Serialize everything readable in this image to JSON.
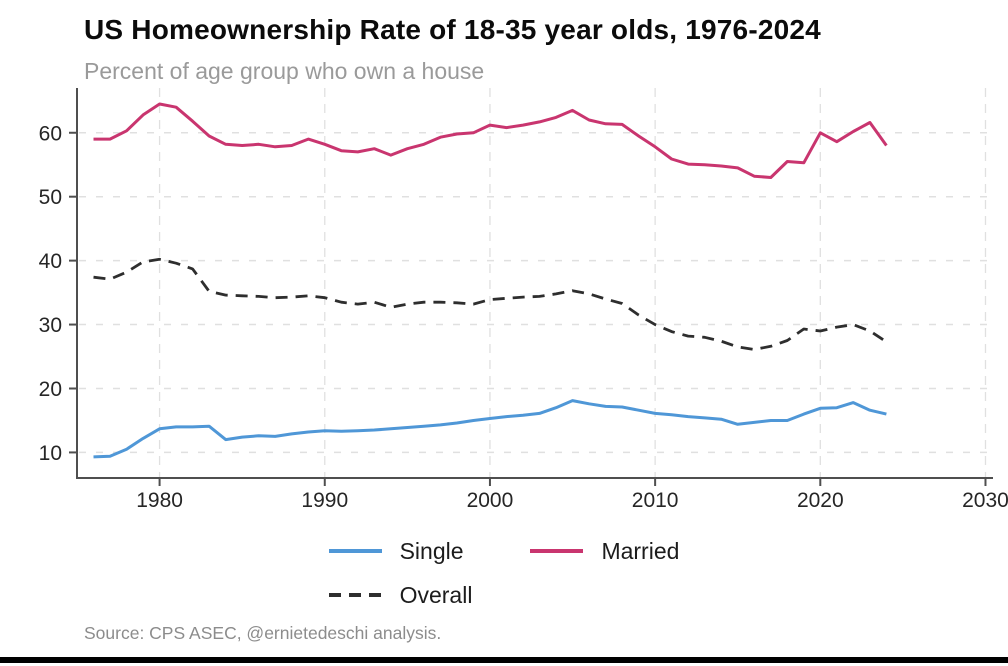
{
  "title": "US Homeownership Rate of 18-35 year olds, 1976-2024",
  "subtitle": "Percent of age group who own a house",
  "source": "Source: CPS ASEC, @ernietedeschi analysis.",
  "colors": {
    "single": "#4f97d7",
    "married": "#c9356f",
    "overall": "#2e2e2e",
    "grid": "#e0e0e0",
    "axis": "#4f4f4f",
    "tick_label": "#262626"
  },
  "legend": {
    "single": "Single",
    "married": "Married",
    "overall": "Overall"
  },
  "chart_data": {
    "type": "line",
    "title": "US Homeownership Rate of 18-35 year olds, 1976-2024",
    "subtitle": "Percent of age group who own a house",
    "xlabel": "",
    "ylabel": "Percent of age group who own a house",
    "grid": true,
    "legend_position": "bottom",
    "xlim": [
      1975,
      2031
    ],
    "ylim": [
      6,
      67
    ],
    "x_ticks": [
      1980,
      1990,
      2000,
      2010,
      2020,
      2030
    ],
    "y_ticks": [
      10,
      20,
      30,
      40,
      50,
      60
    ],
    "x": [
      1976,
      1977,
      1978,
      1979,
      1980,
      1981,
      1982,
      1983,
      1984,
      1985,
      1986,
      1987,
      1988,
      1989,
      1990,
      1991,
      1992,
      1993,
      1994,
      1995,
      1996,
      1997,
      1998,
      1999,
      2000,
      2001,
      2002,
      2003,
      2004,
      2005,
      2006,
      2007,
      2008,
      2009,
      2010,
      2011,
      2012,
      2013,
      2014,
      2015,
      2016,
      2017,
      2018,
      2019,
      2020,
      2021,
      2022,
      2023,
      2024
    ],
    "series": [
      {
        "name": "Single",
        "color": "#4f97d7",
        "dashed": false,
        "values": [
          9.3,
          9.4,
          10.5,
          12.2,
          13.7,
          14.0,
          14.0,
          14.1,
          12.0,
          12.4,
          12.6,
          12.5,
          12.9,
          13.2,
          13.4,
          13.3,
          13.4,
          13.5,
          13.7,
          13.9,
          14.1,
          14.3,
          14.6,
          15.0,
          15.3,
          15.6,
          15.8,
          16.1,
          17.0,
          18.1,
          17.6,
          17.2,
          17.1,
          16.6,
          16.1,
          15.9,
          15.6,
          15.4,
          15.2,
          14.4,
          14.7,
          15.0,
          15.0,
          16.0,
          16.9,
          17.0,
          17.8,
          16.6,
          16.0
        ]
      },
      {
        "name": "Married",
        "color": "#c9356f",
        "dashed": false,
        "values": [
          59.0,
          59.0,
          60.3,
          62.8,
          64.5,
          64.0,
          61.8,
          59.5,
          58.2,
          58.0,
          58.2,
          57.8,
          58.0,
          59.0,
          58.2,
          57.2,
          57.0,
          57.5,
          56.5,
          57.5,
          58.2,
          59.3,
          59.8,
          60.0,
          61.2,
          60.8,
          61.2,
          61.7,
          62.4,
          63.5,
          62.0,
          61.4,
          61.3,
          59.5,
          57.8,
          55.9,
          55.1,
          55.0,
          54.8,
          54.5,
          53.2,
          53.0,
          55.5,
          55.3,
          60.0,
          58.6,
          60.2,
          61.6,
          58.0
        ]
      },
      {
        "name": "Overall",
        "color": "#2e2e2e",
        "dashed": true,
        "values": [
          37.4,
          37.1,
          38.2,
          39.8,
          40.2,
          39.6,
          38.7,
          35.2,
          34.6,
          34.5,
          34.4,
          34.2,
          34.3,
          34.5,
          34.2,
          33.5,
          33.2,
          33.5,
          32.7,
          33.2,
          33.5,
          33.5,
          33.4,
          33.2,
          33.9,
          34.1,
          34.3,
          34.4,
          34.8,
          35.3,
          34.8,
          34.0,
          33.3,
          31.5,
          30.0,
          28.9,
          28.2,
          28.0,
          27.4,
          26.5,
          26.1,
          26.6,
          27.5,
          29.3,
          29.0,
          29.6,
          30.0,
          29.0,
          27.3
        ]
      }
    ]
  }
}
